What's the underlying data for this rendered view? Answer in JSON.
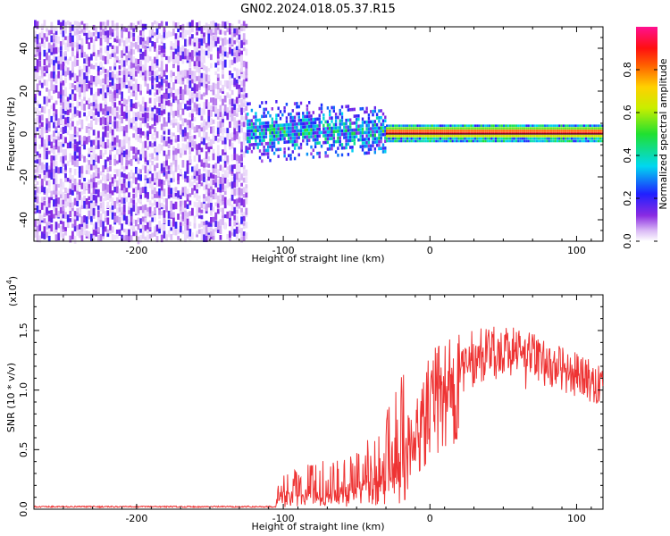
{
  "title": "GN02.2024.018.05.37.R15",
  "chart_data": [
    {
      "type": "heatmap",
      "xlabel": "Height of straight line (km)",
      "ylabel": "Frequency (Hz)",
      "xlim": [
        -270,
        118
      ],
      "ylim": [
        -50,
        50
      ],
      "xticks": [
        -200,
        -100,
        0,
        100
      ],
      "yticks": [
        -40,
        -20,
        0,
        20,
        40
      ],
      "colorbar": {
        "label": "Normalized spectral amplitude",
        "range": [
          0,
          1
        ],
        "ticks": [
          "0.0",
          "0.2",
          "0.4",
          "0.6",
          "0.8"
        ],
        "colormap": "white-purple-blue-cyan-green-yellow-orange-red-pink"
      },
      "regions": [
        {
          "x": [
            -270,
            -125
          ],
          "description": "broadband noise, frequency -50 to 50 Hz, amplitude low",
          "amplitude": [
            0.02,
            0.2
          ]
        },
        {
          "x": [
            -125,
            -30
          ],
          "frequency_center": 0,
          "frequency_spread": [
            -10,
            12
          ],
          "amplitude": [
            0.1,
            0.55
          ]
        },
        {
          "x": [
            -30,
            118
          ],
          "frequency_center": 0,
          "frequency_spread": [
            -3,
            3
          ],
          "amplitude": [
            0.6,
            1.0
          ]
        }
      ]
    },
    {
      "type": "line",
      "xlabel": "Height of straight line (km)",
      "ylabel": "SNR (10 * v/v)",
      "multiplier": "(x10",
      "multiplier_exp": "4",
      "multiplier_close": ")",
      "xlim": [
        -270,
        118
      ],
      "ylim": [
        0,
        18000
      ],
      "xticks": [
        -200,
        -100,
        0,
        100
      ],
      "yticks": [
        "0.0",
        "0.5",
        "1.0",
        "1.5"
      ],
      "ytick_values": [
        0,
        5000,
        10000,
        15000
      ],
      "color": "#ee3333",
      "series_profile": [
        {
          "x": -270,
          "y": 0
        },
        {
          "x": -110,
          "y": 0
        },
        {
          "x": -100,
          "y": 1500
        },
        {
          "x": -60,
          "y": 2000
        },
        {
          "x": -35,
          "y": 3000
        },
        {
          "x": -20,
          "y": 5000
        },
        {
          "x": -10,
          "y": 6000
        },
        {
          "x": 0,
          "y": 9000
        },
        {
          "x": 20,
          "y": 11500
        },
        {
          "x": 40,
          "y": 13500
        },
        {
          "x": 60,
          "y": 13500
        },
        {
          "x": 80,
          "y": 12500
        },
        {
          "x": 100,
          "y": 11500
        },
        {
          "x": 118,
          "y": 10500
        }
      ]
    }
  ]
}
